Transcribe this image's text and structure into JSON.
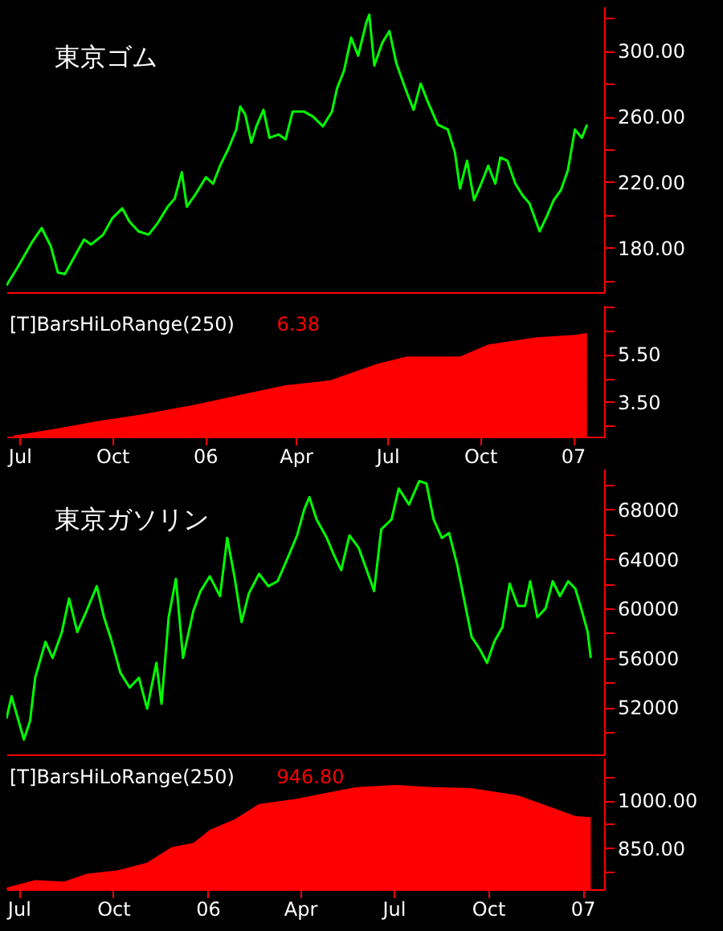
{
  "chart_data": [
    {
      "type": "line",
      "title": "東京ゴム",
      "color": "#00ff00",
      "tick_labels": "y",
      "xlim": [
        "2005-06-18",
        "2007-02-01"
      ],
      "ylim": [
        153,
        327
      ],
      "yticks": [
        {
          "value": 160,
          "label": null
        },
        {
          "value": 180,
          "label": "180.00"
        },
        {
          "value": 200,
          "label": null
        },
        {
          "value": 220,
          "label": "220.00"
        },
        {
          "value": 240,
          "label": null
        },
        {
          "value": 260,
          "label": "260.00"
        },
        {
          "value": 280,
          "label": null
        },
        {
          "value": 300,
          "label": "300.00"
        },
        {
          "value": 320,
          "label": null
        }
      ],
      "x": [
        "2005-06-18",
        "2005-06-29",
        "2005-07-14",
        "2005-07-23",
        "2005-08-01",
        "2005-08-08",
        "2005-08-15",
        "2005-08-24",
        "2005-09-03",
        "2005-09-10",
        "2005-09-22",
        "2005-10-01",
        "2005-10-11",
        "2005-10-18",
        "2005-10-27",
        "2005-11-06",
        "2005-11-15",
        "2005-11-25",
        "2005-12-02",
        "2005-12-09",
        "2005-12-14",
        "2005-12-23",
        "2006-01-02",
        "2006-01-09",
        "2006-01-16",
        "2006-01-24",
        "2006-02-01",
        "2006-02-05",
        "2006-02-10",
        "2006-02-16",
        "2006-02-21",
        "2006-02-28",
        "2006-03-06",
        "2006-03-15",
        "2006-03-22",
        "2006-03-29",
        "2006-04-09",
        "2006-04-18",
        "2006-04-28",
        "2006-05-07",
        "2006-05-12",
        "2006-05-19",
        "2006-05-26",
        "2006-06-02",
        "2006-06-10",
        "2006-06-13",
        "2006-06-18",
        "2006-06-26",
        "2006-07-03",
        "2006-07-10",
        "2006-07-20",
        "2006-07-27",
        "2006-08-03",
        "2006-08-10",
        "2006-08-20",
        "2006-08-30",
        "2006-09-06",
        "2006-09-11",
        "2006-09-18",
        "2006-09-25",
        "2006-10-02",
        "2006-10-09",
        "2006-10-16",
        "2006-10-21",
        "2006-10-28",
        "2006-11-05",
        "2006-11-12",
        "2006-11-19",
        "2006-11-29",
        "2006-12-06",
        "2006-12-13",
        "2006-12-20",
        "2006-12-27",
        "2007-01-03",
        "2007-01-10",
        "2007-01-15"
      ],
      "values": [
        157,
        168,
        184,
        192,
        181,
        165,
        164,
        174,
        185,
        182,
        188,
        198,
        204,
        196,
        190,
        188,
        195,
        205,
        210,
        226,
        205,
        213,
        223,
        219,
        230,
        240,
        252,
        266,
        261,
        244,
        254,
        264,
        247,
        249,
        246,
        263,
        263,
        260,
        254,
        263,
        277,
        288,
        308,
        297,
        317,
        322,
        291,
        305,
        312,
        292,
        275,
        264,
        280,
        269,
        255,
        252,
        238,
        216,
        233,
        209,
        219,
        230,
        219,
        235,
        233,
        219,
        212,
        207,
        190,
        199,
        209,
        215,
        227,
        252,
        247,
        255
      ]
    },
    {
      "type": "area",
      "title": "[T]BarsHiLoRange(250)",
      "annotations": [
        "6.38"
      ],
      "color": "#ff0000",
      "xlim": [
        "2005-06-18",
        "2007-02-01"
      ],
      "xticks": [
        {
          "value": "2005-07-01",
          "label": "Jul"
        },
        {
          "value": "2005-10-01",
          "label": "Oct"
        },
        {
          "value": "2006-01-01",
          "label": "06"
        },
        {
          "value": "2006-04-01",
          "label": "Apr"
        },
        {
          "value": "2006-07-01",
          "label": "Jul"
        },
        {
          "value": "2006-10-01",
          "label": "Oct"
        },
        {
          "value": "2007-01-01",
          "label": "07"
        }
      ],
      "ylim": [
        2.06,
        7.55
      ],
      "yticks": [
        {
          "value": 2.5,
          "label": null
        },
        {
          "value": 3.5,
          "label": "3.50"
        },
        {
          "value": 4.5,
          "label": null
        },
        {
          "value": 5.5,
          "label": "5.50"
        },
        {
          "value": 6.5,
          "label": null
        },
        {
          "value": 7.5,
          "label": null
        }
      ],
      "x": [
        "2005-06-25",
        "2005-08-08",
        "2005-09-15",
        "2005-11-01",
        "2005-12-23",
        "2006-02-05",
        "2006-03-22",
        "2006-05-05",
        "2006-06-21",
        "2006-07-20",
        "2006-09-11",
        "2006-10-09",
        "2006-11-26",
        "2007-01-03",
        "2007-01-15"
      ],
      "values": [
        2.1,
        2.4,
        2.7,
        3.0,
        3.4,
        3.8,
        4.2,
        4.4,
        5.1,
        5.4,
        5.4,
        5.9,
        6.2,
        6.3,
        6.38
      ]
    },
    {
      "type": "line",
      "title": "東京ガソリン",
      "color": "#00ff00",
      "tick_labels": "y",
      "xlim": [
        "2005-06-19",
        "2007-01-22"
      ],
      "ylim": [
        48200,
        71300
      ],
      "yticks": [
        {
          "value": 50000,
          "label": null
        },
        52000,
        {
          "value": 54000,
          "label": null
        },
        56000,
        {
          "value": 58000,
          "label": null
        },
        60000,
        {
          "value": 62000,
          "label": null
        },
        64000,
        {
          "value": 66000,
          "label": null
        },
        68000,
        {
          "value": 70000,
          "label": null
        }
      ],
      "x": [
        "2005-06-19",
        "2005-06-24",
        "2005-07-06",
        "2005-07-12",
        "2005-07-17",
        "2005-07-27",
        "2005-08-03",
        "2005-08-12",
        "2005-08-19",
        "2005-08-27",
        "2005-09-05",
        "2005-09-15",
        "2005-09-22",
        "2005-09-29",
        "2005-10-08",
        "2005-10-17",
        "2005-10-26",
        "2005-11-03",
        "2005-11-12",
        "2005-11-17",
        "2005-11-24",
        "2005-12-01",
        "2005-12-08",
        "2005-12-18",
        "2005-12-25",
        "2006-01-03",
        "2006-01-13",
        "2006-01-20",
        "2006-01-27",
        "2006-02-03",
        "2006-02-10",
        "2006-02-20",
        "2006-03-01",
        "2006-03-10",
        "2006-03-20",
        "2006-03-29",
        "2006-04-05",
        "2006-04-10",
        "2006-04-17",
        "2006-04-27",
        "2006-05-04",
        "2006-05-11",
        "2006-05-19",
        "2006-05-28",
        "2006-06-07",
        "2006-06-12",
        "2006-06-19",
        "2006-06-29",
        "2006-07-06",
        "2006-07-16",
        "2006-07-26",
        "2006-08-02",
        "2006-08-09",
        "2006-08-17",
        "2006-08-24",
        "2006-09-01",
        "2006-09-08",
        "2006-09-15",
        "2006-09-23",
        "2006-09-30",
        "2006-10-07",
        "2006-10-15",
        "2006-10-22",
        "2006-10-30",
        "2006-11-06",
        "2006-11-11",
        "2006-11-18",
        "2006-11-26",
        "2006-12-03",
        "2006-12-10",
        "2006-12-18",
        "2006-12-25",
        "2006-12-30",
        "2007-01-06",
        "2007-01-09"
      ],
      "values": [
        51100,
        52900,
        49400,
        50900,
        54400,
        57300,
        56000,
        58100,
        60800,
        58100,
        59800,
        61800,
        59300,
        57500,
        54800,
        53600,
        54400,
        51900,
        55600,
        52300,
        59300,
        62400,
        56000,
        59800,
        61400,
        62600,
        61000,
        65700,
        62600,
        58900,
        61200,
        62800,
        61800,
        62200,
        64100,
        65900,
        68000,
        69000,
        67200,
        65700,
        64300,
        63100,
        65900,
        64900,
        62600,
        61400,
        66400,
        67200,
        69700,
        68400,
        70300,
        70100,
        67200,
        65700,
        66100,
        63500,
        60600,
        57700,
        56700,
        55600,
        57300,
        58500,
        62000,
        60200,
        60200,
        62200,
        59300,
        60000,
        62200,
        61000,
        62200,
        61600,
        60200,
        58100,
        56000
      ]
    },
    {
      "type": "area",
      "title": "[T]BarsHiLoRange(250)",
      "annotations": [
        "946.80"
      ],
      "color": "#ff0000",
      "xlim": [
        "2005-06-19",
        "2007-01-22"
      ],
      "xticks": [
        {
          "value": "2005-07-01",
          "label": "Jul"
        },
        {
          "value": "2005-10-01",
          "label": "Oct"
        },
        {
          "value": "2006-01-01",
          "label": "06"
        },
        {
          "value": "2006-04-01",
          "label": "Apr"
        },
        {
          "value": "2006-07-01",
          "label": "Jul"
        },
        {
          "value": "2006-10-01",
          "label": "Oct"
        },
        {
          "value": "2007-01-01",
          "label": "07"
        }
      ],
      "ylim": [
        720,
        1135
      ],
      "yticks": [
        {
          "value": 775,
          "label": null
        },
        {
          "value": 850,
          "label": "850.00"
        },
        {
          "value": 925,
          "label": null
        },
        {
          "value": 1000,
          "label": "1000.00"
        },
        {
          "value": 1075,
          "label": null
        }
      ],
      "x": [
        "2005-06-19",
        "2005-07-17",
        "2005-08-14",
        "2005-09-05",
        "2005-10-06",
        "2005-11-03",
        "2005-11-27",
        "2005-12-18",
        "2006-01-03",
        "2006-01-27",
        "2006-02-20",
        "2006-03-29",
        "2006-04-22",
        "2006-05-26",
        "2006-07-03",
        "2006-08-09",
        "2006-09-15",
        "2006-10-30",
        "2006-11-27",
        "2006-12-25",
        "2007-01-09"
      ],
      "values": [
        725,
        749,
        744,
        769,
        780,
        804,
        853,
        866,
        907,
        940,
        989,
        1005,
        1021,
        1042,
        1049,
        1042,
        1039,
        1016,
        984,
        951,
        946.8
      ]
    }
  ]
}
